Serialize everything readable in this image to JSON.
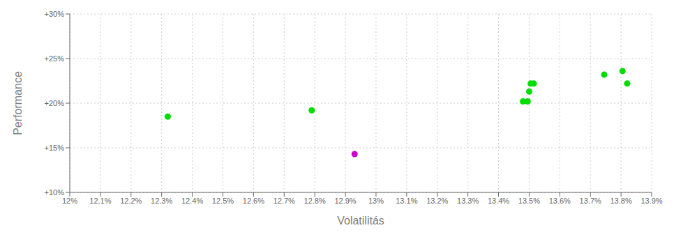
{
  "chart_data": {
    "type": "scatter",
    "xlabel": "Volatilitás",
    "ylabel": "Performance",
    "xlim": [
      0.12,
      0.139
    ],
    "ylim": [
      0.1,
      0.3
    ],
    "xticks": [
      {
        "value": 0.12,
        "label": "12%"
      },
      {
        "value": 0.121,
        "label": "12.1%"
      },
      {
        "value": 0.122,
        "label": "12.2%"
      },
      {
        "value": 0.123,
        "label": "12.3%"
      },
      {
        "value": 0.124,
        "label": "12.4%"
      },
      {
        "value": 0.125,
        "label": "12.5%"
      },
      {
        "value": 0.126,
        "label": "12.6%"
      },
      {
        "value": 0.127,
        "label": "12.7%"
      },
      {
        "value": 0.128,
        "label": "12.8%"
      },
      {
        "value": 0.129,
        "label": "12.9%"
      },
      {
        "value": 0.13,
        "label": "13%"
      },
      {
        "value": 0.131,
        "label": "13.1%"
      },
      {
        "value": 0.132,
        "label": "13.2%"
      },
      {
        "value": 0.133,
        "label": "13.3%"
      },
      {
        "value": 0.134,
        "label": "13.4%"
      },
      {
        "value": 0.135,
        "label": "13.5%"
      },
      {
        "value": 0.136,
        "label": "13.6%"
      },
      {
        "value": 0.137,
        "label": "13.7%"
      },
      {
        "value": 0.138,
        "label": "13.8%"
      },
      {
        "value": 0.139,
        "label": "13.9%"
      }
    ],
    "yticks": [
      {
        "value": 0.1,
        "label": "+10%"
      },
      {
        "value": 0.15,
        "label": "+15%"
      },
      {
        "value": 0.2,
        "label": "+20%"
      },
      {
        "value": 0.25,
        "label": "+25%"
      },
      {
        "value": 0.3,
        "label": "+30%"
      }
    ],
    "grid": true,
    "series": [
      {
        "color": "#00dd00",
        "x": [
          0.1232,
          0.1279,
          0.1348,
          0.13495,
          0.135,
          0.13505,
          0.13515,
          0.13745,
          0.13805,
          0.1382
        ],
        "values": [
          0.185,
          0.192,
          0.202,
          0.202,
          0.213,
          0.222,
          0.222,
          0.232,
          0.236,
          0.222
        ]
      },
      {
        "color": "#cc00cc",
        "x": [
          0.1293
        ],
        "values": [
          0.143
        ]
      }
    ]
  }
}
